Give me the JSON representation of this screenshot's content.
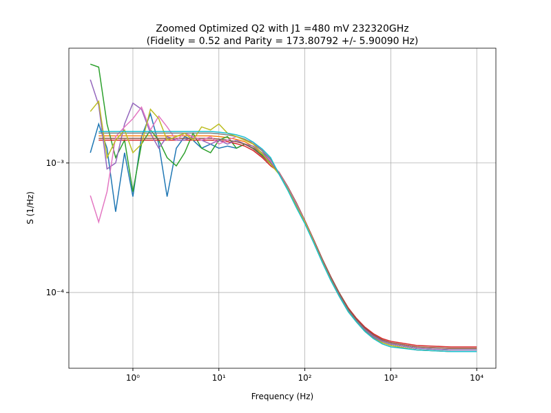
{
  "chart_data": {
    "type": "line",
    "title": "Zoomed Optimized Q2 with J1 =480 mV 232320GHz",
    "subtitle": "(Fidelity = 0.52 and Parity = 173.80792 +/- 5.90090 Hz)",
    "x_label": "Frequency (Hz)",
    "y_label": "S (1/Hz)",
    "x_scale": "log",
    "y_scale": "log",
    "grid": true,
    "xlim": [
      0.18,
      16700
    ],
    "ylim": [
      2.6e-05,
      0.0077
    ],
    "xticks": [
      {
        "value": 1,
        "label": "10⁰"
      },
      {
        "value": 10,
        "label": "10¹"
      },
      {
        "value": 100,
        "label": "10²"
      },
      {
        "value": 1000,
        "label": "10³"
      },
      {
        "value": 10000,
        "label": "10⁴"
      }
    ],
    "yticks": [
      {
        "value": 0.0001,
        "label": "10⁻⁴"
      },
      {
        "value": 0.001,
        "label": "10⁻³"
      }
    ],
    "x": [
      0.32,
      0.4,
      0.5,
      0.63,
      0.8,
      1,
      1.26,
      1.6,
      2,
      2.5,
      3.2,
      4,
      5,
      6.3,
      8,
      10,
      12.6,
      16,
      20,
      25,
      32,
      40,
      50,
      63,
      80,
      100,
      126,
      160,
      200,
      250,
      320,
      400,
      500,
      630,
      800,
      1000,
      2000,
      5000,
      10000
    ],
    "series": [
      {
        "color": "#1f77b4",
        "values": [
          0.0012,
          0.002,
          0.0013,
          0.00042,
          0.0012,
          0.00055,
          0.0016,
          0.0024,
          0.0014,
          0.00055,
          0.0013,
          0.0016,
          0.0015,
          0.0013,
          0.0014,
          0.0013,
          0.00135,
          0.0013,
          0.0014,
          0.0013,
          0.0012,
          0.00105,
          0.00084,
          0.00065,
          0.00048,
          0.000356,
          0.000254,
          0.000178,
          0.00013,
          9.8e-05,
          7.4e-05,
          6.1e-05,
          5.2e-05,
          4.6e-05,
          4.2e-05,
          4e-05,
          3.7e-05,
          3.6e-05,
          3.6e-05
        ]
      },
      {
        "color": "#ff7f0e",
        "values": [
          null,
          0.00162,
          0.00162,
          0.00162,
          0.00162,
          0.00162,
          0.00162,
          0.00162,
          0.00162,
          0.00162,
          0.00162,
          0.00162,
          0.00162,
          0.00162,
          0.00162,
          0.0016,
          0.00157,
          0.00152,
          0.00146,
          0.00134,
          0.00118,
          0.00102,
          0.00084,
          0.00066,
          0.00049,
          0.00036,
          0.000257,
          0.00018,
          0.000132,
          0.0001,
          7.6e-05,
          6.2e-05,
          5.3e-05,
          4.7e-05,
          4.3e-05,
          4.1e-05,
          3.8e-05,
          3.7e-05,
          3.7e-05
        ]
      },
      {
        "color": "#2ca02c",
        "values": [
          0.0058,
          0.0055,
          0.002,
          0.0011,
          0.0015,
          0.0006,
          0.0014,
          0.0018,
          0.0015,
          0.0011,
          0.00095,
          0.0012,
          0.0017,
          0.0013,
          0.0012,
          0.0015,
          0.0016,
          0.0013,
          0.0014,
          0.0013,
          0.00115,
          0.001,
          0.00084,
          0.00065,
          0.00048,
          0.000356,
          0.000254,
          0.000178,
          0.00013,
          9.8e-05,
          7.4e-05,
          6.1e-05,
          5.2e-05,
          4.6e-05,
          4.2e-05,
          4e-05,
          3.7e-05,
          3.6e-05,
          3.6e-05
        ]
      },
      {
        "color": "#d62728",
        "values": [
          null,
          0.0015,
          0.0015,
          0.0015,
          0.0015,
          0.0015,
          0.0015,
          0.0015,
          0.0015,
          0.0015,
          0.0015,
          0.0015,
          0.0015,
          0.0015,
          0.0015,
          0.00149,
          0.00146,
          0.00141,
          0.00135,
          0.00125,
          0.0011,
          0.00095,
          0.00085,
          0.00066,
          0.00049,
          0.00036,
          0.000258,
          0.000181,
          0.000133,
          0.0001,
          7.6e-05,
          6.3e-05,
          5.4e-05,
          4.8e-05,
          4.4e-05,
          4.2e-05,
          3.9e-05,
          3.8e-05,
          3.8e-05
        ]
      },
      {
        "color": "#9467bd",
        "values": [
          0.0044,
          0.0028,
          0.0009,
          0.001,
          0.002,
          0.0029,
          0.0026,
          0.0017,
          0.0013,
          0.0016,
          0.0015,
          0.0015,
          0.0016,
          0.0015,
          0.0014,
          0.0015,
          0.0014,
          0.0015,
          0.0014,
          0.00135,
          0.0012,
          0.00102,
          0.00084,
          0.00065,
          0.00048,
          0.000356,
          0.000254,
          0.000178,
          0.00013,
          9.8e-05,
          7.4e-05,
          6.1e-05,
          5.2e-05,
          4.6e-05,
          4.2e-05,
          4e-05,
          3.7e-05,
          3.6e-05,
          3.6e-05
        ]
      },
      {
        "color": "#8c564b",
        "values": [
          null,
          0.00155,
          0.00155,
          0.00155,
          0.00155,
          0.00155,
          0.00155,
          0.00155,
          0.00155,
          0.00155,
          0.00155,
          0.00155,
          0.00155,
          0.00155,
          0.00155,
          0.00153,
          0.0015,
          0.00146,
          0.0014,
          0.00129,
          0.00113,
          0.00098,
          0.00085,
          0.00066,
          0.00049,
          0.00036,
          0.000257,
          0.00018,
          0.000132,
          0.0001,
          7.5e-05,
          6.2e-05,
          5.3e-05,
          4.7e-05,
          4.3e-05,
          4.1e-05,
          3.8e-05,
          3.7e-05,
          3.7e-05
        ]
      },
      {
        "color": "#e377c2",
        "values": [
          0.00056,
          0.00035,
          0.0006,
          0.0016,
          0.0019,
          0.0022,
          0.0027,
          0.0018,
          0.0023,
          0.0019,
          0.0015,
          0.0017,
          0.0016,
          0.0015,
          0.0016,
          0.0014,
          0.0015,
          0.0016,
          0.0015,
          0.00145,
          0.00125,
          0.00104,
          0.00084,
          0.00065,
          0.00048,
          0.000354,
          0.000252,
          0.000176,
          0.000128,
          9.6e-05,
          7.2e-05,
          6e-05,
          5.1e-05,
          4.5e-05,
          4.1e-05,
          3.9e-05,
          3.6e-05,
          3.5e-05,
          3.5e-05
        ]
      },
      {
        "color": "#7f7f7f",
        "values": [
          null,
          0.0017,
          0.0017,
          0.0017,
          0.0017,
          0.0017,
          0.0017,
          0.0017,
          0.0017,
          0.0017,
          0.0017,
          0.0017,
          0.0017,
          0.0017,
          0.0017,
          0.00168,
          0.00165,
          0.0016,
          0.00153,
          0.00141,
          0.00124,
          0.00107,
          0.00083,
          0.00064,
          0.00047,
          0.00035,
          0.00025,
          0.000176,
          0.000128,
          9.6e-05,
          7.3e-05,
          6e-05,
          5.1e-05,
          4.5e-05,
          4.1e-05,
          3.9e-05,
          3.6e-05,
          3.5e-05,
          3.5e-05
        ]
      },
      {
        "color": "#bcbd22",
        "values": [
          0.0025,
          0.003,
          0.0011,
          0.0015,
          0.0018,
          0.0012,
          0.0014,
          0.0026,
          0.0022,
          0.0015,
          0.0016,
          0.0017,
          0.0015,
          0.0019,
          0.0018,
          0.002,
          0.0017,
          0.0016,
          0.0015,
          0.0014,
          0.00118,
          0.00098,
          0.00082,
          0.00063,
          0.00046,
          0.00035,
          0.000248,
          0.000172,
          0.000125,
          9.4e-05,
          7.1e-05,
          5.9e-05,
          5e-05,
          4.4e-05,
          4.1e-05,
          3.9e-05,
          3.6e-05,
          3.5e-05,
          3.5e-05
        ]
      },
      {
        "color": "#17becf",
        "values": [
          null,
          0.00175,
          0.00175,
          0.00175,
          0.00175,
          0.00175,
          0.00175,
          0.00175,
          0.00175,
          0.00175,
          0.00175,
          0.00175,
          0.00175,
          0.00175,
          0.00175,
          0.00173,
          0.0017,
          0.00165,
          0.00158,
          0.00145,
          0.00128,
          0.0011,
          0.00082,
          0.00062,
          0.00045,
          0.00034,
          0.000244,
          0.00017,
          0.000124,
          9.4e-05,
          7.1e-05,
          5.9e-05,
          5e-05,
          4.4e-05,
          4e-05,
          3.8e-05,
          3.6e-05,
          3.5e-05,
          3.5e-05
        ]
      }
    ]
  }
}
